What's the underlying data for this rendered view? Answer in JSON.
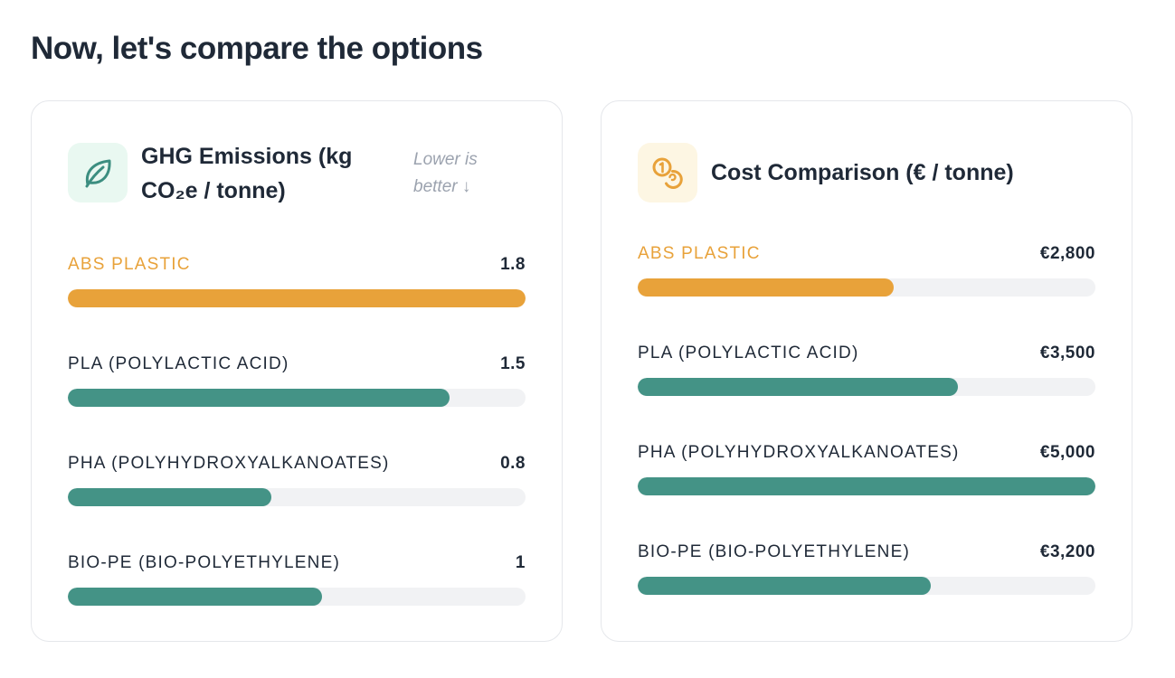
{
  "page": {
    "title": "Now, let's compare the options"
  },
  "colors": {
    "highlight": "#e8a23a",
    "bar": "#449386",
    "track": "#f1f2f4",
    "hint": "#9ca3af"
  },
  "emissions_card": {
    "title": "GHG Emissions (kg CO₂e / tonne)",
    "hint": "Lower is better ↓",
    "icon": "leaf-icon"
  },
  "cost_card": {
    "title": "Cost Comparison (€ / tonne)",
    "icon": "coins-icon"
  },
  "chart_data": [
    {
      "type": "bar",
      "title": "GHG Emissions (kg CO₂e / tonne)",
      "orientation": "horizontal",
      "categories": [
        "ABS PLASTIC",
        "PLA (POLYLACTIC ACID)",
        "PHA (POLYHYDROXYALKANOATES)",
        "BIO-PE (BIO-POLYETHYLENE)"
      ],
      "values": [
        1.8,
        1.5,
        0.8,
        1
      ],
      "value_labels": [
        "1.8",
        "1.5",
        "0.8",
        "1"
      ],
      "highlight_index": 0,
      "xlim": [
        0,
        1.8
      ]
    },
    {
      "type": "bar",
      "title": "Cost Comparison (€ / tonne)",
      "orientation": "horizontal",
      "categories": [
        "ABS PLASTIC",
        "PLA (POLYLACTIC ACID)",
        "PHA (POLYHYDROXYALKANOATES)",
        "BIO-PE (BIO-POLYETHYLENE)"
      ],
      "values": [
        2800,
        3500,
        5000,
        3200
      ],
      "value_labels": [
        "€2,800",
        "€3,500",
        "€5,000",
        "€3,200"
      ],
      "highlight_index": 0,
      "xlim": [
        0,
        5000
      ]
    }
  ]
}
